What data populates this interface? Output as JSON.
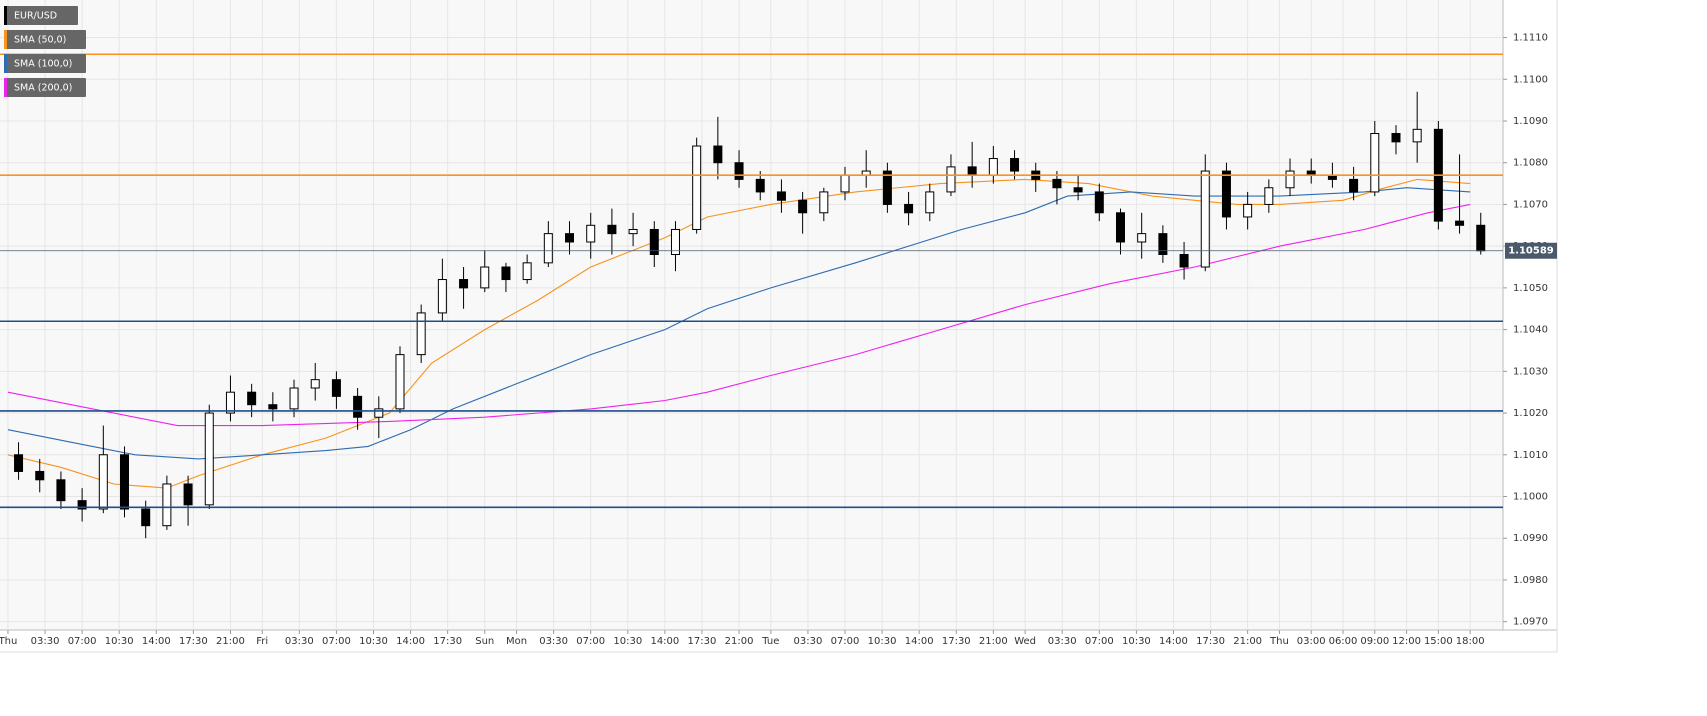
{
  "chart_data": {
    "type": "candlestick",
    "symbol": "EUR/USD",
    "ylim": [
      1.0968,
      1.1119
    ],
    "xlim": [
      -0.75,
      141.1
    ],
    "grid": true,
    "yticks": [
      {
        "value": 1.097,
        "label": "1.0970"
      },
      {
        "value": 1.098,
        "label": "1.0980"
      },
      {
        "value": 1.099,
        "label": "1.0990"
      },
      {
        "value": 1.1,
        "label": "1.1000"
      },
      {
        "value": 1.101,
        "label": "1.1010"
      },
      {
        "value": 1.102,
        "label": "1.1020"
      },
      {
        "value": 1.103,
        "label": "1.1030"
      },
      {
        "value": 1.104,
        "label": "1.1040"
      },
      {
        "value": 1.105,
        "label": "1.1050"
      },
      {
        "value": 1.106,
        "label": "1.1060"
      },
      {
        "value": 1.107,
        "label": "1.1070"
      },
      {
        "value": 1.108,
        "label": "1.1080"
      },
      {
        "value": 1.109,
        "label": "1.1090"
      },
      {
        "value": 1.11,
        "label": "1.1100"
      },
      {
        "value": 1.111,
        "label": "1.1110"
      }
    ],
    "xticks": [
      {
        "value": 0,
        "label": "Thu"
      },
      {
        "value": 3.5,
        "label": "03:30"
      },
      {
        "value": 7,
        "label": "07:00"
      },
      {
        "value": 10.5,
        "label": "10:30"
      },
      {
        "value": 14,
        "label": "14:00"
      },
      {
        "value": 17.5,
        "label": "17:30"
      },
      {
        "value": 21,
        "label": "21:00"
      },
      {
        "value": 24,
        "label": "Fri"
      },
      {
        "value": 27.5,
        "label": "03:30"
      },
      {
        "value": 31,
        "label": "07:00"
      },
      {
        "value": 34.5,
        "label": "10:30"
      },
      {
        "value": 38,
        "label": "14:00"
      },
      {
        "value": 41.5,
        "label": "17:30"
      },
      {
        "value": 45,
        "label": "Sun"
      },
      {
        "value": 48,
        "label": "Mon"
      },
      {
        "value": 51.5,
        "label": "03:30"
      },
      {
        "value": 55,
        "label": "07:00"
      },
      {
        "value": 58.5,
        "label": "10:30"
      },
      {
        "value": 62,
        "label": "14:00"
      },
      {
        "value": 65.5,
        "label": "17:30"
      },
      {
        "value": 69,
        "label": "21:00"
      },
      {
        "value": 72,
        "label": "Tue"
      },
      {
        "value": 75.5,
        "label": "03:30"
      },
      {
        "value": 79,
        "label": "07:00"
      },
      {
        "value": 82.5,
        "label": "10:30"
      },
      {
        "value": 86,
        "label": "14:00"
      },
      {
        "value": 89.5,
        "label": "17:30"
      },
      {
        "value": 93,
        "label": "21:00"
      },
      {
        "value": 96,
        "label": "Wed"
      },
      {
        "value": 99.5,
        "label": "03:30"
      },
      {
        "value": 103,
        "label": "07:00"
      },
      {
        "value": 106.5,
        "label": "10:30"
      },
      {
        "value": 110,
        "label": "14:00"
      },
      {
        "value": 113.5,
        "label": "17:30"
      },
      {
        "value": 117,
        "label": "21:00"
      },
      {
        "value": 120,
        "label": "Thu"
      },
      {
        "value": 123,
        "label": "03:00"
      },
      {
        "value": 126,
        "label": "06:00"
      },
      {
        "value": 129,
        "label": "09:00"
      },
      {
        "value": 132,
        "label": "12:00"
      },
      {
        "value": 135,
        "label": "15:00"
      },
      {
        "value": 138,
        "label": "18:00"
      }
    ],
    "candles": {
      "up_color": "#ffffff",
      "down_color": "#000000",
      "x": [
        1,
        3,
        5,
        7,
        9,
        11,
        13,
        15,
        17,
        19,
        21,
        23,
        25,
        27,
        29,
        31,
        33,
        35,
        37,
        39,
        41,
        43,
        45,
        47,
        49,
        51,
        53,
        55,
        57,
        59,
        61,
        63,
        65,
        67,
        69,
        71,
        73,
        75,
        77,
        79,
        81,
        83,
        85,
        87,
        89,
        91,
        93,
        95,
        97,
        99,
        101,
        103,
        105,
        107,
        109,
        111,
        113,
        115,
        117,
        119,
        121,
        123,
        125,
        127,
        129,
        131,
        133,
        135,
        137,
        139
      ],
      "open": [
        1.101,
        1.1006,
        1.1004,
        1.0999,
        1.0997,
        1.101,
        1.0997,
        1.0993,
        1.1003,
        1.0998,
        1.102,
        1.1025,
        1.1022,
        1.1021,
        1.1026,
        1.1028,
        1.1024,
        1.1019,
        1.1021,
        1.1034,
        1.1044,
        1.1052,
        1.105,
        1.1055,
        1.1052,
        1.1056,
        1.1063,
        1.1061,
        1.1065,
        1.1063,
        1.1064,
        1.1058,
        1.1064,
        1.1084,
        1.108,
        1.1076,
        1.1073,
        1.1071,
        1.1068,
        1.1073,
        1.1077,
        1.1078,
        1.107,
        1.1068,
        1.1073,
        1.1079,
        1.1077,
        1.1081,
        1.1078,
        1.1076,
        1.1074,
        1.1073,
        1.1068,
        1.1061,
        1.1063,
        1.1058,
        1.1055,
        1.1078,
        1.1067,
        1.107,
        1.1074,
        1.1078,
        1.1077,
        1.1076,
        1.1073,
        1.1087,
        1.1085,
        1.1088,
        1.1066,
        1.1065
      ],
      "high": [
        1.1013,
        1.1009,
        1.1006,
        1.1002,
        1.1017,
        1.1012,
        1.0999,
        1.1005,
        1.1005,
        1.1022,
        1.1029,
        1.1027,
        1.1025,
        1.1028,
        1.1032,
        1.103,
        1.1026,
        1.1024,
        1.1036,
        1.1046,
        1.1057,
        1.1055,
        1.1059,
        1.1056,
        1.1058,
        1.1066,
        1.1066,
        1.1068,
        1.1069,
        1.1068,
        1.1066,
        1.1066,
        1.1086,
        1.1091,
        1.1083,
        1.1078,
        1.1076,
        1.1073,
        1.1074,
        1.1079,
        1.1083,
        1.108,
        1.1073,
        1.1075,
        1.1082,
        1.1085,
        1.1084,
        1.1083,
        1.108,
        1.1078,
        1.1077,
        1.1075,
        1.1069,
        1.1068,
        1.1065,
        1.1061,
        1.1082,
        1.108,
        1.1073,
        1.1076,
        1.1081,
        1.1081,
        1.108,
        1.1079,
        1.109,
        1.1089,
        1.1097,
        1.109,
        1.1082,
        1.1068
      ],
      "low": [
        1.1004,
        1.1001,
        1.0997,
        1.0994,
        1.0996,
        1.0995,
        1.099,
        1.0992,
        1.0993,
        1.0997,
        1.1018,
        1.1019,
        1.1018,
        1.1019,
        1.1023,
        1.1021,
        1.1016,
        1.1014,
        1.102,
        1.1032,
        1.1042,
        1.1045,
        1.1049,
        1.1049,
        1.1051,
        1.1055,
        1.1058,
        1.1057,
        1.1058,
        1.106,
        1.1055,
        1.1054,
        1.1063,
        1.1076,
        1.1074,
        1.1071,
        1.1068,
        1.1063,
        1.1066,
        1.1071,
        1.1074,
        1.1068,
        1.1065,
        1.1066,
        1.1072,
        1.1074,
        1.1075,
        1.1076,
        1.1073,
        1.107,
        1.1071,
        1.1066,
        1.1058,
        1.1057,
        1.1056,
        1.1052,
        1.1054,
        1.1064,
        1.1064,
        1.1068,
        1.1072,
        1.1075,
        1.1074,
        1.1071,
        1.1072,
        1.1082,
        1.108,
        1.1064,
        1.1063,
        1.1058
      ],
      "close": [
        1.1006,
        1.1004,
        1.0999,
        1.0997,
        1.101,
        1.0997,
        1.0993,
        1.1003,
        1.0998,
        1.102,
        1.1025,
        1.1022,
        1.1021,
        1.1026,
        1.1028,
        1.1024,
        1.1019,
        1.1021,
        1.1034,
        1.1044,
        1.1052,
        1.105,
        1.1055,
        1.1052,
        1.1056,
        1.1063,
        1.1061,
        1.1065,
        1.1063,
        1.1064,
        1.1058,
        1.1064,
        1.1084,
        1.108,
        1.1076,
        1.1073,
        1.1071,
        1.1068,
        1.1073,
        1.1077,
        1.1078,
        1.107,
        1.1068,
        1.1073,
        1.1079,
        1.1077,
        1.1081,
        1.1078,
        1.1076,
        1.1074,
        1.1073,
        1.1068,
        1.1061,
        1.1063,
        1.1058,
        1.1055,
        1.1078,
        1.1067,
        1.107,
        1.1074,
        1.1078,
        1.1077,
        1.1076,
        1.1073,
        1.1087,
        1.1085,
        1.1088,
        1.1066,
        1.1065,
        1.10589
      ]
    },
    "series": [
      {
        "name": "SMA (50,0)",
        "color": "#f7931e",
        "x": [
          0,
          5,
          10,
          15,
          18,
          24,
          30,
          36,
          40,
          45,
          50,
          55,
          62,
          66,
          72,
          80,
          88,
          96,
          102,
          108,
          112,
          116,
          120,
          126,
          130,
          133,
          138
        ],
        "values": [
          1.101,
          1.1007,
          1.1003,
          1.1002,
          1.1005,
          1.101,
          1.1014,
          1.102,
          1.1032,
          1.104,
          1.1047,
          1.1055,
          1.1062,
          1.1067,
          1.107,
          1.1073,
          1.1075,
          1.1076,
          1.1075,
          1.1072,
          1.1071,
          1.107,
          1.107,
          1.1071,
          1.1074,
          1.1076,
          1.1075
        ]
      },
      {
        "name": "SMA (100,0)",
        "color": "#2e6bb0",
        "x": [
          0,
          6,
          12,
          18,
          24,
          30,
          34,
          38,
          42,
          48,
          55,
          62,
          66,
          72,
          80,
          90,
          96,
          100,
          106,
          112,
          120,
          128,
          132,
          138
        ],
        "values": [
          1.1016,
          1.1013,
          1.101,
          1.1009,
          1.101,
          1.1011,
          1.1012,
          1.1016,
          1.1021,
          1.1027,
          1.1034,
          1.104,
          1.1045,
          1.105,
          1.1056,
          1.1064,
          1.1068,
          1.1072,
          1.1073,
          1.1072,
          1.1072,
          1.1073,
          1.1074,
          1.1073
        ]
      },
      {
        "name": "SMA (200,0)",
        "color": "#ee22ee",
        "x": [
          0,
          8,
          16,
          24,
          36,
          45,
          55,
          62,
          66,
          72,
          80,
          88,
          96,
          104,
          112,
          120,
          128,
          134,
          138
        ],
        "values": [
          1.1025,
          1.1021,
          1.1017,
          1.1017,
          1.1018,
          1.1019,
          1.1021,
          1.1023,
          1.1025,
          1.1029,
          1.1034,
          1.104,
          1.1046,
          1.1051,
          1.1055,
          1.106,
          1.1064,
          1.1068,
          1.107
        ]
      }
    ],
    "levels": [
      {
        "value": 1.1106,
        "color": "#f7931e"
      },
      {
        "value": 1.1077,
        "color": "#f7931e"
      },
      {
        "value": 1.1042,
        "color": "#1f4e8c"
      },
      {
        "value": 1.10205,
        "color": "#1f4e8c"
      },
      {
        "value": 1.09974,
        "color": "#1f4e8c"
      }
    ],
    "last_price": {
      "value": 1.10589,
      "label": "1.10589",
      "color": "#4a5a6a"
    }
  }
}
